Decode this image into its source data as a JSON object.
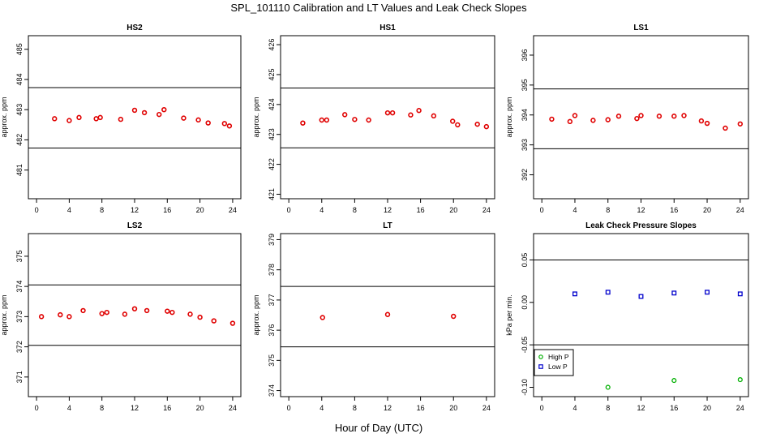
{
  "figure": {
    "title": "SPL_101110  Calibration and LT Values and Leak Check Slopes",
    "xlabel": "Hour of Day (UTC)"
  },
  "colors": {
    "calibration_points": "#e00000",
    "high_p": "#00b000",
    "low_p": "#0000cc",
    "lines": "#000000"
  },
  "chart_data": [
    {
      "type": "scatter",
      "title": "HS2",
      "ylabel": "approx. ppm",
      "xlim": [
        -1,
        25
      ],
      "ylim": [
        480.05,
        485.45
      ],
      "xticks": [
        "0",
        "4",
        "8",
        "12",
        "16",
        "20",
        "24"
      ],
      "yticks": [
        "481",
        "482",
        "483",
        "484",
        "485"
      ],
      "hlines": [
        483.73,
        481.73
      ],
      "series": [
        {
          "x": [
            2.2,
            4.0,
            5.2,
            7.3,
            7.8,
            10.3,
            12.0,
            13.2,
            15.0,
            15.6,
            18.0,
            19.8,
            21.0,
            23.0,
            23.6
          ],
          "y": [
            482.7,
            482.64,
            482.74,
            482.7,
            482.74,
            482.68,
            482.98,
            482.9,
            482.84,
            483.0,
            482.72,
            482.66,
            482.56,
            482.54,
            482.46
          ]
        }
      ]
    },
    {
      "type": "scatter",
      "title": "HS1",
      "ylabel": "approx. ppm",
      "xlim": [
        -1,
        25
      ],
      "ylim": [
        420.85,
        426.3
      ],
      "xticks": [
        "0",
        "4",
        "8",
        "12",
        "16",
        "20",
        "24"
      ],
      "yticks": [
        "421",
        "422",
        "423",
        "424",
        "425",
        "426"
      ],
      "hlines": [
        424.55,
        422.55
      ],
      "series": [
        {
          "x": [
            1.7,
            4.0,
            4.6,
            6.8,
            8.0,
            9.7,
            12.0,
            12.6,
            14.8,
            15.8,
            17.6,
            19.9,
            20.5,
            22.9,
            24.0
          ],
          "y": [
            423.38,
            423.48,
            423.48,
            423.66,
            423.5,
            423.48,
            423.72,
            423.72,
            423.65,
            423.8,
            423.62,
            423.44,
            423.32,
            423.34,
            423.26
          ]
        }
      ]
    },
    {
      "type": "scatter",
      "title": "LS1",
      "ylabel": "approx. ppm",
      "xlim": [
        -1,
        25
      ],
      "ylim": [
        391.2,
        396.65
      ],
      "xticks": [
        "0",
        "4",
        "8",
        "12",
        "16",
        "20",
        "24"
      ],
      "yticks": [
        "392",
        "393",
        "394",
        "395",
        "396"
      ],
      "hlines": [
        394.87,
        392.87
      ],
      "series": [
        {
          "x": [
            1.2,
            3.4,
            4.0,
            6.2,
            8.0,
            9.3,
            11.5,
            12.0,
            14.2,
            16.0,
            17.2,
            19.3,
            20.0,
            22.2,
            24.0
          ],
          "y": [
            393.86,
            393.78,
            393.98,
            393.82,
            393.84,
            393.96,
            393.88,
            393.98,
            393.96,
            393.96,
            393.98,
            393.8,
            393.72,
            393.56,
            393.7
          ]
        }
      ]
    },
    {
      "type": "scatter",
      "title": "LS2",
      "ylabel": "approx. ppm",
      "xlim": [
        -1,
        25
      ],
      "ylim": [
        370.35,
        375.75
      ],
      "xticks": [
        "0",
        "4",
        "8",
        "12",
        "16",
        "20",
        "24"
      ],
      "yticks": [
        "371",
        "372",
        "373",
        "374",
        "375"
      ],
      "hlines": [
        374.05,
        372.05
      ],
      "series": [
        {
          "x": [
            0.6,
            2.9,
            4.0,
            5.7,
            8.0,
            8.6,
            10.8,
            12.0,
            13.5,
            16.0,
            16.6,
            18.8,
            20.0,
            21.7,
            24.0
          ],
          "y": [
            373.0,
            373.06,
            373.0,
            373.2,
            373.1,
            373.14,
            373.08,
            373.26,
            373.2,
            373.18,
            373.14,
            373.08,
            372.98,
            372.86,
            372.78
          ]
        }
      ]
    },
    {
      "type": "scatter",
      "title": "LT",
      "ylabel": "approx. ppm",
      "xlim": [
        -1,
        25
      ],
      "ylim": [
        373.8,
        379.2
      ],
      "xticks": [
        "0",
        "4",
        "8",
        "12",
        "16",
        "20",
        "24"
      ],
      "yticks": [
        "374",
        "375",
        "376",
        "377",
        "378",
        "379"
      ],
      "hlines": [
        377.45,
        375.45
      ],
      "series": [
        {
          "x": [
            4.1,
            12.0,
            20.0
          ],
          "y": [
            376.42,
            376.52,
            376.46
          ]
        }
      ]
    },
    {
      "type": "scatter",
      "title": "Leak Check Pressure Slopes",
      "ylabel": "kPa per min.",
      "xlim": [
        -1,
        25
      ],
      "ylim": [
        -0.111,
        0.081
      ],
      "xticks": [
        "0",
        "4",
        "8",
        "12",
        "16",
        "20",
        "24"
      ],
      "yticks": [
        "-0.10",
        "-0.05",
        "0.00",
        "0.05"
      ],
      "hlines": [
        0.05,
        -0.05
      ],
      "legend": {
        "position": "bottom-left"
      },
      "series": [
        {
          "name": "High P",
          "x": [
            8,
            16,
            24
          ],
          "y": [
            -0.1,
            -0.092,
            -0.091
          ]
        },
        {
          "name": "Low P",
          "x": [
            4,
            8,
            12,
            16,
            20,
            24
          ],
          "y": [
            0.01,
            0.012,
            0.007,
            0.011,
            0.012,
            0.01
          ]
        }
      ]
    }
  ]
}
